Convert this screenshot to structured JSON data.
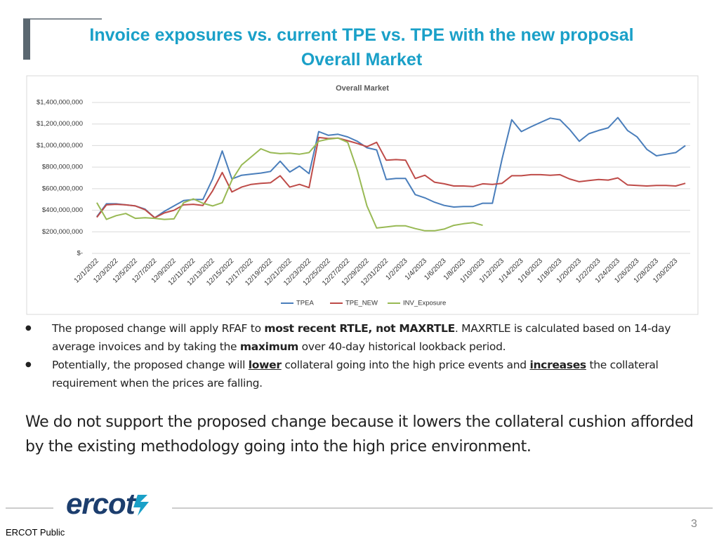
{
  "slide": {
    "title": [
      "Invoice exposures vs. current TPE vs. TPE with the new proposal",
      "Overall Market"
    ],
    "bullets": [
      [
        {
          "text": "The proposed change will apply RFAF to "
        },
        {
          "text": "most recent RTLE, not MAXRTLE",
          "bold": true
        },
        {
          "text": ". MAXRTLE is calculated based on 14-day average invoices and by taking the "
        },
        {
          "text": "maximum",
          "bold": true
        },
        {
          "text": " over 40-day historical lookback period."
        }
      ],
      [
        {
          "text": "Potentially, the proposed change will "
        },
        {
          "text": "lower",
          "bold": true,
          "underline": true
        },
        {
          "text": " collateral going into the high price events and "
        },
        {
          "text": "increases",
          "bold": true,
          "underline": true
        },
        {
          "text": " the collateral requirement when the prices are falling."
        }
      ]
    ],
    "statement": "We do not support the proposed change because it lowers the collateral cushion afforded by the existing methodology going into the high price environment.",
    "logo": "ercot",
    "footer": "ERCOT Public",
    "page_number": "3"
  },
  "chart_data": {
    "type": "line",
    "title": "Overall Market",
    "categories": [
      "12/1/2022",
      null,
      "12/3/2022",
      null,
      "12/5/2022",
      null,
      "12/7/2022",
      null,
      "12/9/2022",
      null,
      "12/11/2022",
      null,
      "12/13/2022",
      null,
      "12/15/2022",
      null,
      "12/17/2022",
      null,
      "12/19/2022",
      null,
      "12/21/2022",
      null,
      "12/23/2022",
      null,
      "12/25/2022",
      null,
      "12/27/2022",
      null,
      "12/29/2022",
      null,
      "12/31/2022",
      null,
      "1/2/2023",
      null,
      "1/4/2023",
      null,
      "1/6/2023",
      null,
      "1/8/2023",
      null,
      "1/10/2023",
      null,
      "1/12/2023",
      null,
      "1/14/2023",
      null,
      "1/16/2023",
      null,
      "1/18/2023",
      null,
      "1/20/2023",
      null,
      "1/22/2023",
      null,
      "1/24/2023",
      null,
      "1/26/2023",
      null,
      "1/28/2023",
      null,
      "1/30/2023",
      null
    ],
    "series": [
      {
        "name": "TPEA",
        "color": "#4a7ebb",
        "values": [
          340000000,
          460000000,
          460000000,
          450000000,
          440000000,
          410000000,
          330000000,
          390000000,
          440000000,
          490000000,
          500000000,
          500000000,
          690000000,
          950000000,
          690000000,
          725000000,
          735000000,
          745000000,
          760000000,
          855000000,
          755000000,
          810000000,
          740000000,
          1130000000,
          1095000000,
          1105000000,
          1080000000,
          1040000000,
          980000000,
          960000000,
          685000000,
          695000000,
          695000000,
          545000000,
          515000000,
          475000000,
          445000000,
          430000000,
          435000000,
          435000000,
          465000000,
          465000000,
          875000000,
          1240000000,
          1130000000,
          1175000000,
          1215000000,
          1255000000,
          1240000000,
          1150000000,
          1040000000,
          1110000000,
          1140000000,
          1165000000,
          1260000000,
          1140000000,
          1080000000,
          965000000,
          905000000,
          920000000,
          935000000,
          1000000000
        ]
      },
      {
        "name": "TPE_NEW",
        "color": "#be4b48",
        "values": [
          335000000,
          450000000,
          455000000,
          450000000,
          440000000,
          405000000,
          330000000,
          375000000,
          400000000,
          450000000,
          455000000,
          445000000,
          580000000,
          750000000,
          570000000,
          615000000,
          640000000,
          650000000,
          655000000,
          720000000,
          615000000,
          640000000,
          610000000,
          1075000000,
          1065000000,
          1070000000,
          1045000000,
          1020000000,
          990000000,
          1030000000,
          865000000,
          870000000,
          865000000,
          695000000,
          725000000,
          660000000,
          645000000,
          625000000,
          625000000,
          620000000,
          645000000,
          640000000,
          650000000,
          720000000,
          720000000,
          730000000,
          730000000,
          725000000,
          730000000,
          690000000,
          665000000,
          675000000,
          685000000,
          680000000,
          700000000,
          635000000,
          630000000,
          625000000,
          630000000,
          630000000,
          625000000,
          650000000
        ]
      },
      {
        "name": "INV_Exposure",
        "color": "#98b954",
        "values": [
          470000000,
          315000000,
          350000000,
          370000000,
          325000000,
          330000000,
          325000000,
          315000000,
          320000000,
          470000000,
          505000000,
          465000000,
          440000000,
          470000000,
          680000000,
          820000000,
          895000000,
          970000000,
          935000000,
          925000000,
          930000000,
          920000000,
          935000000,
          1040000000,
          1060000000,
          1070000000,
          1030000000,
          770000000,
          440000000,
          235000000,
          245000000,
          255000000,
          255000000,
          230000000,
          210000000,
          210000000,
          225000000,
          260000000,
          275000000,
          285000000,
          260000000,
          null,
          null,
          null,
          null,
          null,
          null,
          null,
          null,
          null,
          null,
          null,
          null,
          null,
          null,
          null,
          null,
          null,
          null,
          null,
          null,
          null
        ]
      }
    ],
    "ylim": [
      0,
      1400000000
    ],
    "yticks": [
      {
        "value": 0,
        "label": "$-"
      },
      {
        "value": 200000000,
        "label": "$200,000,000"
      },
      {
        "value": 400000000,
        "label": "$400,000,000"
      },
      {
        "value": 600000000,
        "label": "$600,000,000"
      },
      {
        "value": 800000000,
        "label": "$800,000,000"
      },
      {
        "value": 1000000000,
        "label": "$1,000,000,000"
      },
      {
        "value": 1200000000,
        "label": "$1,200,000,000"
      },
      {
        "value": 1400000000,
        "label": "$1,400,000,000"
      }
    ],
    "grid": true,
    "legend": "bottom"
  }
}
